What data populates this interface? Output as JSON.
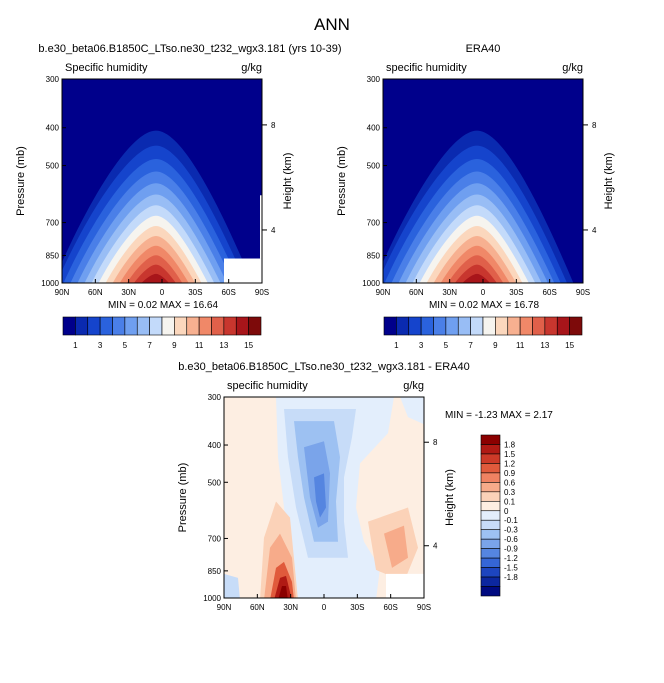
{
  "figure": {
    "title": "ANN"
  },
  "chart_data": [
    {
      "type": "heatmap",
      "case_title": "b.e30_beta06.B1850C_LTso.ne30_t232_wgx3.181 (yrs 10-39)",
      "variable": "Specific humidity",
      "units": "g/kg",
      "ylabel": "Pressure (mb)",
      "ylabel_right": "Height (km)",
      "x_ticks": [
        "90N",
        "60N",
        "30N",
        "0",
        "30S",
        "60S",
        "90S"
      ],
      "y_ticks": [
        "300",
        "400",
        "500",
        "700",
        "850",
        "1000"
      ],
      "height_ticks": [
        "8",
        "4"
      ],
      "min": "0.02",
      "max": "16.64",
      "min_label": "MIN =",
      "max_label": "MAX =",
      "colorbar_labels": [
        "1",
        "3",
        "5",
        "7",
        "9",
        "11",
        "13",
        "15"
      ]
    },
    {
      "type": "heatmap",
      "case_title": "ERA40",
      "variable": "specific humidity",
      "units": "g/kg",
      "ylabel": "Pressure (mb)",
      "ylabel_right": "Height (km)",
      "x_ticks": [
        "90N",
        "60N",
        "30N",
        "0",
        "30S",
        "60S",
        "90S"
      ],
      "y_ticks": [
        "300",
        "400",
        "500",
        "700",
        "850",
        "1000"
      ],
      "height_ticks": [
        "8",
        "4"
      ],
      "min": "0.02",
      "max": "16.78",
      "min_label": "MIN =",
      "max_label": "MAX =",
      "colorbar_labels": [
        "1",
        "3",
        "5",
        "7",
        "9",
        "11",
        "13",
        "15"
      ]
    },
    {
      "type": "heatmap",
      "case_title": "b.e30_beta06.B1850C_LTso.ne30_t232_wgx3.181 - ERA40",
      "variable": "specific humidity",
      "units": "g/kg",
      "ylabel": "Pressure (mb)",
      "ylabel_right": "Height (km)",
      "x_ticks": [
        "90N",
        "60N",
        "30N",
        "0",
        "30S",
        "60S",
        "90S"
      ],
      "y_ticks": [
        "300",
        "400",
        "500",
        "700",
        "850",
        "1000"
      ],
      "height_ticks": [
        "8",
        "4"
      ],
      "min": "-1.23",
      "max": "2.17",
      "min_label": "MIN =",
      "max_label": "MAX =",
      "colorbar_labels": [
        "1.8",
        "1.5",
        "1.2",
        "0.9",
        "0.6",
        "0.3",
        "0.1",
        "0",
        "-0.1",
        "-0.3",
        "-0.6",
        "-0.9",
        "-1.2",
        "-1.5",
        "-1.8"
      ]
    }
  ],
  "colors": {
    "humidity_scale": [
      "#00008b",
      "#0a2ab0",
      "#1544cc",
      "#2a62dd",
      "#4a7fe8",
      "#6f9ff0",
      "#98bdf5",
      "#c3dafa",
      "#f6f4ef",
      "#fbd7bd",
      "#f7b090",
      "#f08868",
      "#e0604a",
      "#c8362e",
      "#a8151a",
      "#7d0a0a"
    ],
    "diff_scale": [
      "#8b0000",
      "#b01a14",
      "#cc3a28",
      "#e05a3c",
      "#ef8262",
      "#f7ab8a",
      "#fbd2b8",
      "#fdeee2",
      "#e3eefc",
      "#c7dcf8",
      "#9dc1f2",
      "#7aa4ea",
      "#5585e0",
      "#3566d6",
      "#1d45bf",
      "#0c279f",
      "#000a80"
    ]
  }
}
